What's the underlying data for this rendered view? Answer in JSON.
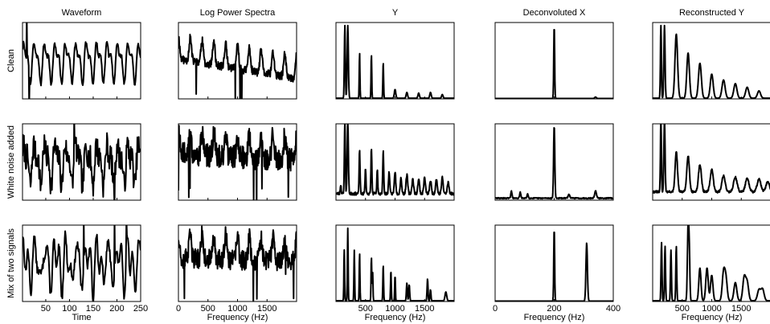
{
  "figure": {
    "column_titles": [
      "Waveform",
      "Log Power Spectra",
      "Y",
      "Deconvoluted X",
      "Reconstructed Y"
    ],
    "row_labels": [
      "Clean",
      "White noise added",
      "Mix of two signals"
    ],
    "colors": {
      "trace": "#000000",
      "frame": "#000000",
      "background": "#ffffff"
    }
  },
  "chart_data": {
    "type": "line",
    "layout": "grid 3 rows x 5 columns",
    "columns": [
      {
        "title": "Waveform",
        "xlabel": "Time",
        "xlim": [
          1,
          250
        ],
        "xticks": [
          50,
          100,
          150,
          200,
          250
        ],
        "xtick_labels": [
          "50",
          "100",
          "150",
          "200",
          "250"
        ],
        "ylim": [
          -1,
          1
        ],
        "kind": "waveform"
      },
      {
        "title": "Log Power Spectra",
        "xlabel": "Frequency (Hz)",
        "xlim": [
          0,
          2000
        ],
        "xticks": [
          0,
          500,
          1000,
          1500
        ],
        "xtick_labels": [
          "0",
          "500",
          "1000",
          "1500"
        ],
        "ylim": [
          0,
          1
        ],
        "kind": "logspectrum"
      },
      {
        "title": "Y",
        "xlabel": "Frequency (Hz)",
        "xlim": [
          0,
          2000
        ],
        "xticks": [
          500,
          1000,
          1500
        ],
        "xtick_labels": [
          "500",
          "1000",
          "1500"
        ],
        "ylim": [
          0,
          1
        ],
        "kind": "peaks"
      },
      {
        "title": "Deconvoluted X",
        "xlabel": "Frequency (Hz)",
        "xlim": [
          0,
          400
        ],
        "xticks": [
          0,
          200,
          400
        ],
        "xtick_labels": [
          "0",
          "200",
          "400"
        ],
        "ylim": [
          0,
          1
        ],
        "kind": "peaks"
      },
      {
        "title": "Reconstructed Y",
        "xlabel": "Frequency (Hz)",
        "xlim": [
          0,
          2000
        ],
        "xticks": [
          500,
          1000,
          1500
        ],
        "xtick_labels": [
          "500",
          "1000",
          "1500"
        ],
        "ylim": [
          0,
          1
        ],
        "kind": "peaks"
      }
    ],
    "rows": [
      {
        "label": "Clean",
        "waveform": {
          "period": 22,
          "seed": 3,
          "noise": 0.08,
          "spikes": [
            [
              10,
              1.0
            ],
            [
              15,
              -1.0
            ]
          ]
        },
        "logspectrum": {
          "fundamental": 200,
          "harmonic_decay": 0.06,
          "roughness": 0.12,
          "seed": 11,
          "baseline": 0.45
        },
        "Y": {
          "baseline": 0.01,
          "peaks": [
            [
              150,
              1.0,
              8
            ],
            [
              200,
              1.0,
              10
            ],
            [
              400,
              0.62,
              6
            ],
            [
              600,
              0.6,
              6
            ],
            [
              800,
              0.5,
              6
            ],
            [
              1000,
              0.12,
              12
            ],
            [
              1200,
              0.08,
              12
            ],
            [
              1400,
              0.07,
              12
            ],
            [
              1600,
              0.08,
              12
            ],
            [
              1800,
              0.05,
              12
            ]
          ]
        },
        "Deconvoluted X": {
          "baseline": 0.005,
          "peaks": [
            [
              200,
              1.0,
              1.5
            ],
            [
              340,
              0.02,
              3
            ]
          ]
        },
        "Reconstructed Y": {
          "baseline": 0.01,
          "peaks": [
            [
              140,
              1.0,
              8
            ],
            [
              200,
              1.0,
              10
            ],
            [
              400,
              0.88,
              22
            ],
            [
              600,
              0.62,
              22
            ],
            [
              800,
              0.48,
              24
            ],
            [
              1000,
              0.33,
              24
            ],
            [
              1200,
              0.25,
              26
            ],
            [
              1400,
              0.2,
              26
            ],
            [
              1600,
              0.15,
              26
            ],
            [
              1800,
              0.1,
              26
            ]
          ]
        }
      },
      {
        "label": "White noise added",
        "waveform": {
          "period": 22,
          "seed": 7,
          "noise": 0.45,
          "spikes": [
            [
              110,
              1.0
            ],
            [
              195,
              -1.0
            ]
          ]
        },
        "logspectrum": {
          "fundamental": 200,
          "harmonic_decay": 0.02,
          "roughness": 0.35,
          "seed": 19,
          "baseline": 0.55
        },
        "Y": {
          "baseline": 0.07,
          "noise": 0.04,
          "seed": 23,
          "peaks": [
            [
              80,
              0.12,
              8
            ],
            [
              150,
              1.0,
              8
            ],
            [
              200,
              1.0,
              10
            ],
            [
              400,
              0.6,
              8
            ],
            [
              500,
              0.35,
              8
            ],
            [
              600,
              0.62,
              8
            ],
            [
              700,
              0.32,
              8
            ],
            [
              800,
              0.6,
              8
            ],
            [
              900,
              0.3,
              10
            ],
            [
              1000,
              0.3,
              12
            ],
            [
              1100,
              0.22,
              12
            ],
            [
              1200,
              0.26,
              14
            ],
            [
              1300,
              0.2,
              14
            ],
            [
              1400,
              0.2,
              14
            ],
            [
              1500,
              0.22,
              14
            ],
            [
              1600,
              0.18,
              14
            ],
            [
              1700,
              0.2,
              14
            ],
            [
              1800,
              0.22,
              14
            ],
            [
              1900,
              0.16,
              14
            ]
          ]
        },
        "Deconvoluted X": {
          "baseline": 0.02,
          "noise": 0.015,
          "seed": 29,
          "peaks": [
            [
              55,
              0.1,
              2
            ],
            [
              85,
              0.08,
              2
            ],
            [
              110,
              0.06,
              2
            ],
            [
              200,
              1.0,
              2
            ],
            [
              250,
              0.05,
              3
            ],
            [
              340,
              0.1,
              3
            ]
          ]
        },
        "Reconstructed Y": {
          "baseline": 0.1,
          "noise": 0.03,
          "seed": 31,
          "peaks": [
            [
              140,
              1.0,
              8
            ],
            [
              200,
              1.0,
              10
            ],
            [
              400,
              0.55,
              20
            ],
            [
              600,
              0.5,
              22
            ],
            [
              800,
              0.38,
              24
            ],
            [
              1000,
              0.3,
              26
            ],
            [
              1200,
              0.22,
              28
            ],
            [
              1400,
              0.2,
              30
            ],
            [
              1600,
              0.18,
              30
            ],
            [
              1800,
              0.18,
              30
            ],
            [
              1950,
              0.14,
              30
            ]
          ]
        }
      },
      {
        "label": "Mix of two signals",
        "waveform": {
          "period": 22,
          "period2": 13,
          "seed": 13,
          "noise": 0.15,
          "spikes": [
            [
              130,
              1.0
            ],
            [
              195,
              1.0
            ],
            [
              220,
              1.0
            ]
          ]
        },
        "logspectrum": {
          "fundamental": 200,
          "harmonic_decay": 0.01,
          "roughness": 0.3,
          "seed": 37,
          "baseline": 0.5
        },
        "Y": {
          "baseline": 0.01,
          "peaks": [
            [
              140,
              0.7,
              6
            ],
            [
              200,
              1.0,
              6
            ],
            [
              310,
              0.7,
              6
            ],
            [
              400,
              0.65,
              6
            ],
            [
              600,
              0.6,
              6
            ],
            [
              620,
              0.4,
              6
            ],
            [
              800,
              0.5,
              6
            ],
            [
              930,
              0.42,
              6
            ],
            [
              1000,
              0.35,
              6
            ],
            [
              1200,
              0.25,
              8
            ],
            [
              1240,
              0.22,
              8
            ],
            [
              1550,
              0.3,
              8
            ],
            [
              1600,
              0.15,
              8
            ],
            [
              1860,
              0.12,
              14
            ]
          ]
        },
        "Deconvoluted X": {
          "baseline": 0.005,
          "peaks": [
            [
              200,
              1.0,
              1.5
            ],
            [
              310,
              0.8,
              2.5
            ]
          ]
        },
        "Reconstructed Y": {
          "baseline": 0.01,
          "peaks": [
            [
              150,
              0.8,
              8
            ],
            [
              210,
              0.75,
              8
            ],
            [
              310,
              0.7,
              8
            ],
            [
              400,
              0.75,
              8
            ],
            [
              600,
              1.0,
              12
            ],
            [
              620,
              0.6,
              10
            ],
            [
              800,
              0.45,
              18
            ],
            [
              920,
              0.45,
              20
            ],
            [
              1000,
              0.35,
              20
            ],
            [
              1200,
              0.38,
              22
            ],
            [
              1240,
              0.3,
              22
            ],
            [
              1400,
              0.25,
              24
            ],
            [
              1550,
              0.32,
              24
            ],
            [
              1600,
              0.25,
              24
            ],
            [
              1800,
              0.15,
              26
            ],
            [
              1860,
              0.16,
              26
            ]
          ]
        }
      }
    ]
  }
}
